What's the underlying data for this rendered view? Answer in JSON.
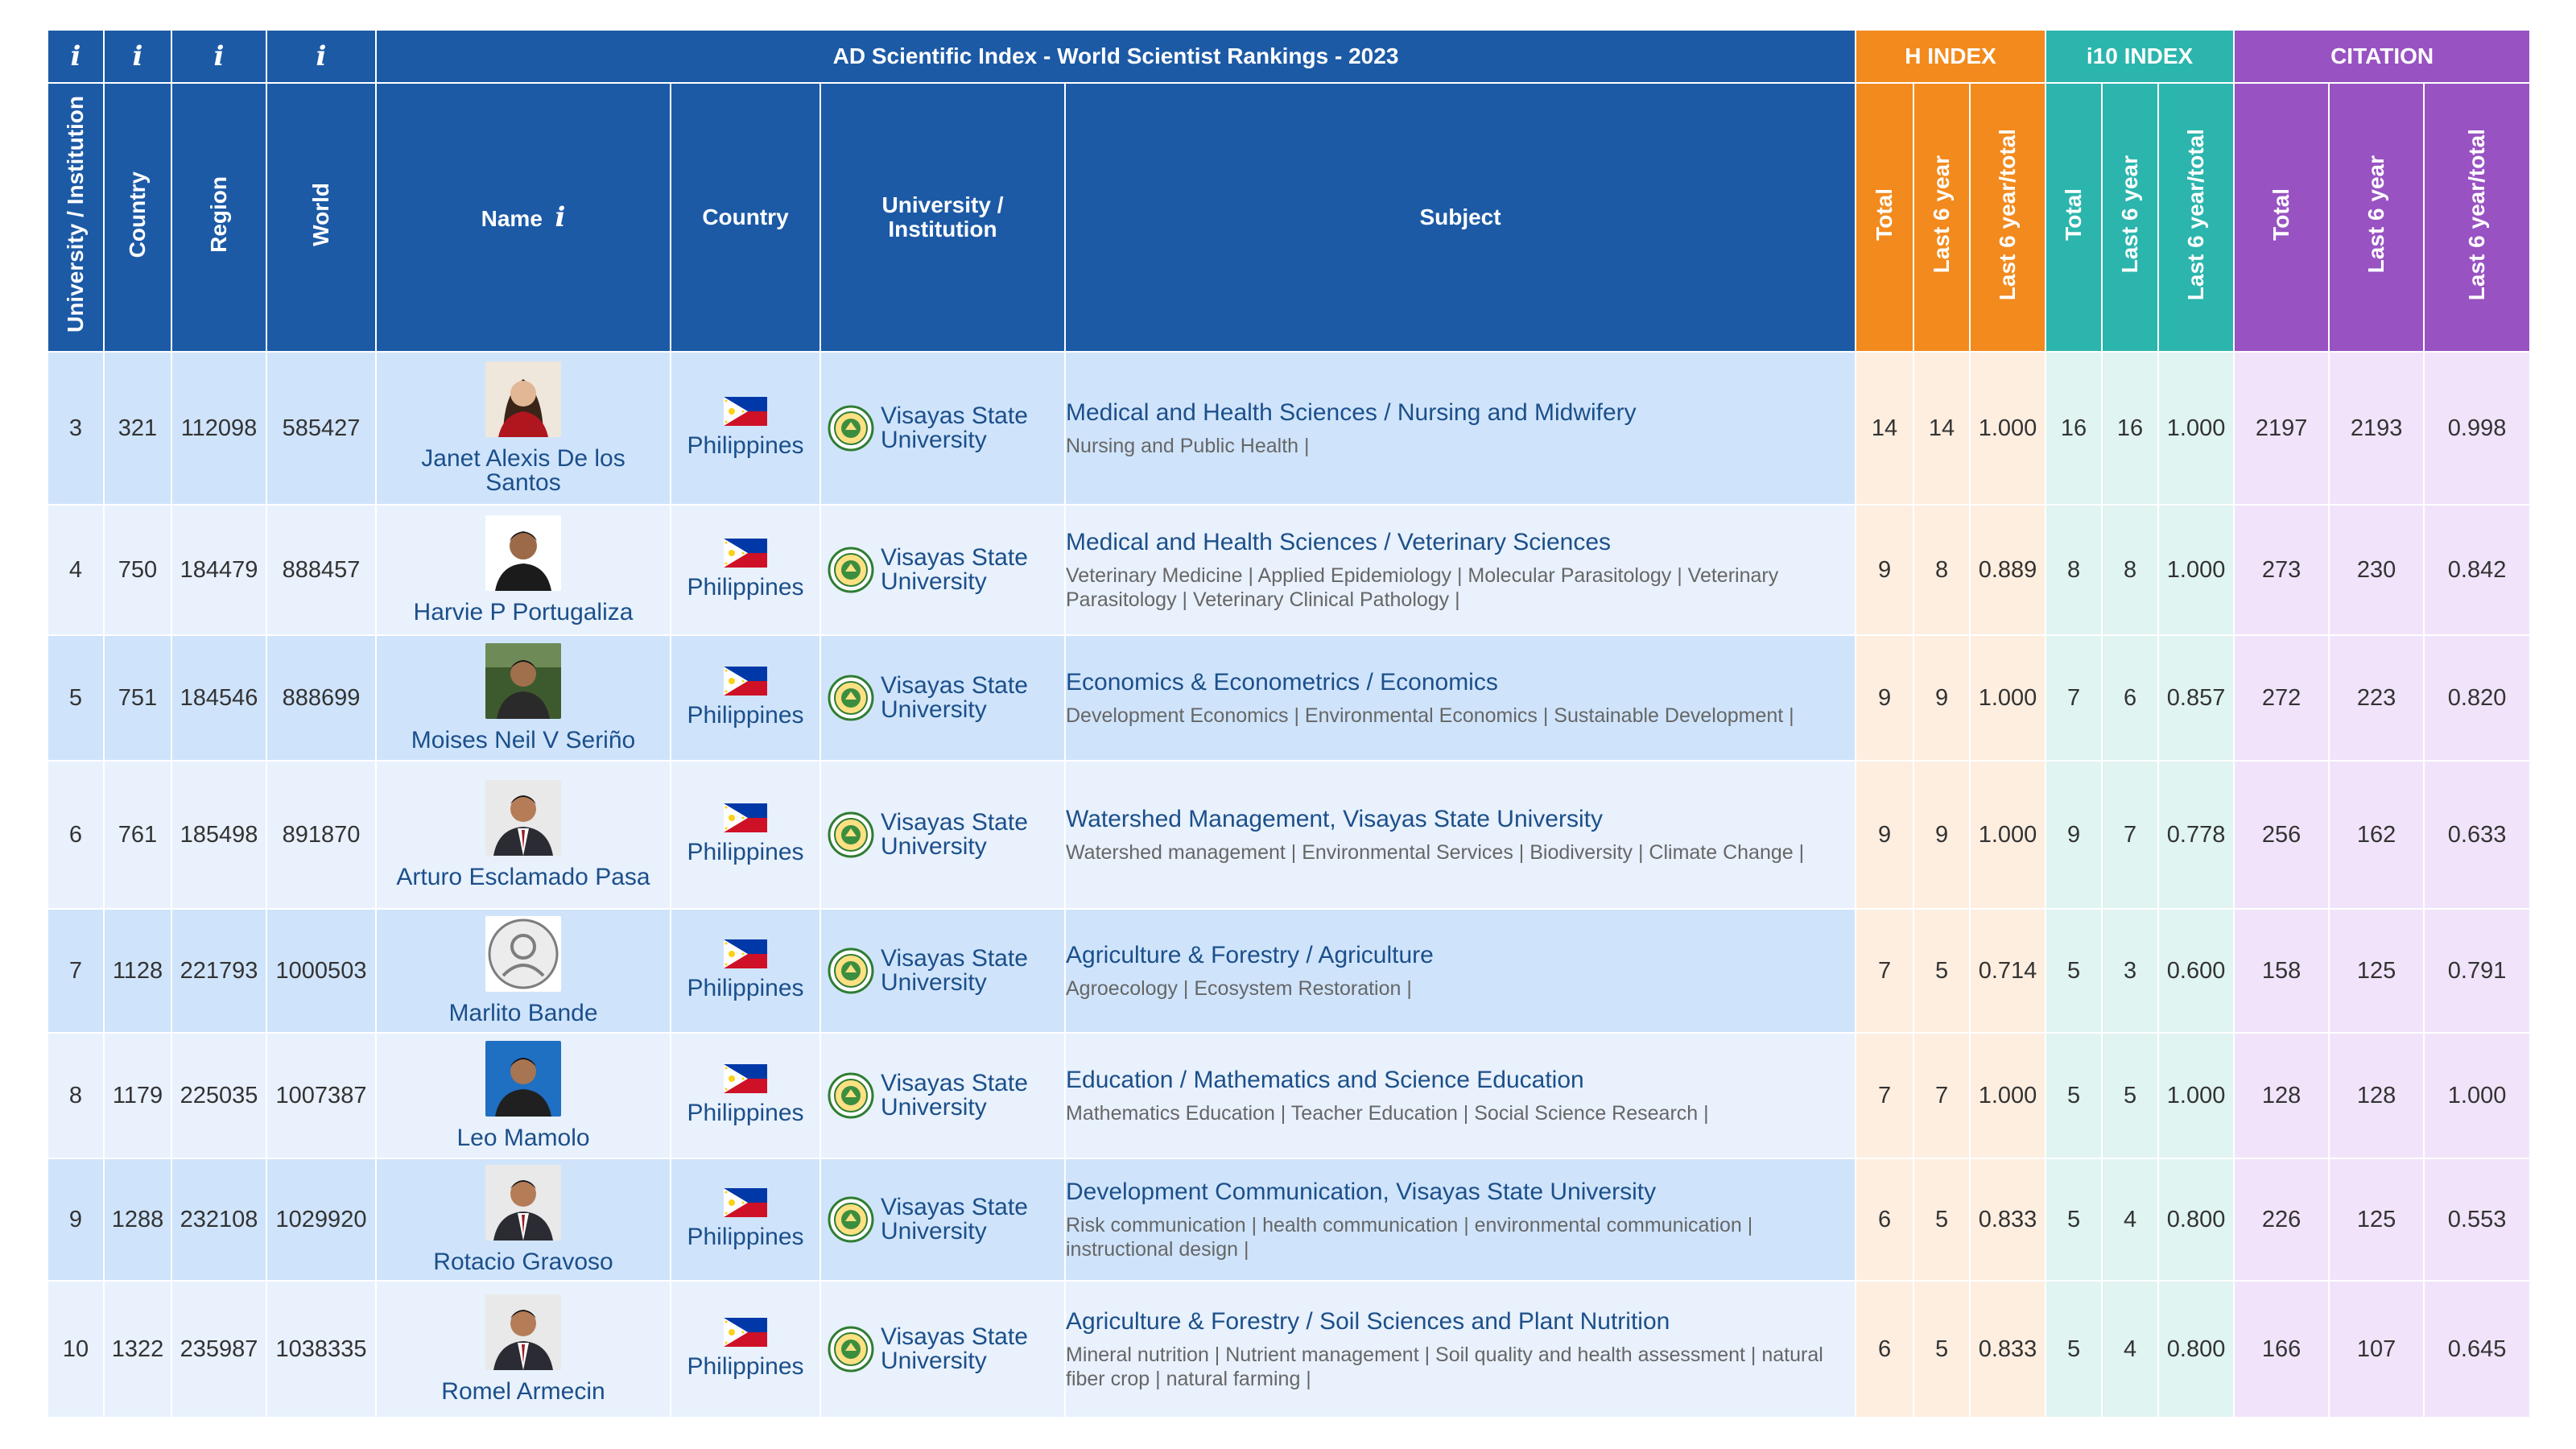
{
  "header": {
    "title": "AD Scientific Index - World Scientist Rankings - 2023",
    "info_symbol": "i",
    "groups": {
      "h_index": "H INDEX",
      "i10_index": "i10 INDEX",
      "citation": "CITATION"
    },
    "columns": {
      "institution_rank": "University / Institution",
      "country_rank": "Country",
      "region_rank": "Region",
      "world_rank": "World",
      "name": "Name",
      "country": "Country",
      "university": "University / Institution",
      "subject": "Subject",
      "total": "Total",
      "last6": "Last 6 year",
      "ratio": "Last 6 year/total"
    }
  },
  "colors": {
    "header_blue": "#1c5aa6",
    "h_index_orange": "#f28a1d",
    "i10_teal": "#2bb5ad",
    "citation_purple": "#9852c2",
    "row_blue_dark": "#cfe4fb",
    "row_blue_light": "#e8f1fc"
  },
  "rows": [
    {
      "inst_rank": "3",
      "country_rank": "321",
      "region_rank": "112098",
      "world_rank": "585427",
      "name": "Janet Alexis De los Santos",
      "avatar": "female-portrait-icon",
      "country": "Philippines",
      "university": "Visayas State University",
      "subject_main": "Medical and Health Sciences / Nursing and Midwifery",
      "subject_sub": "Nursing and Public Health |",
      "h_total": "14",
      "h_last6": "14",
      "h_ratio": "1.000",
      "i10_total": "16",
      "i10_last6": "16",
      "i10_ratio": "1.000",
      "c_total": "2197",
      "c_last6": "2193",
      "c_ratio": "0.998"
    },
    {
      "inst_rank": "4",
      "country_rank": "750",
      "region_rank": "184479",
      "world_rank": "888457",
      "name": "Harvie P Portugaliza",
      "avatar": "male-portrait-icon",
      "country": "Philippines",
      "university": "Visayas State University",
      "subject_main": "Medical and Health Sciences / Veterinary Sciences",
      "subject_sub": "Veterinary Medicine | Applied Epidemiology | Molecular Parasitology | Veterinary Parasitology | Veterinary Clinical Pathology |",
      "h_total": "9",
      "h_last6": "8",
      "h_ratio": "0.889",
      "i10_total": "8",
      "i10_last6": "8",
      "i10_ratio": "1.000",
      "c_total": "273",
      "c_last6": "230",
      "c_ratio": "0.842"
    },
    {
      "inst_rank": "5",
      "country_rank": "751",
      "region_rank": "184546",
      "world_rank": "888699",
      "name": "Moises Neil V Seriño",
      "avatar": "male-portrait-outdoor-icon",
      "country": "Philippines",
      "university": "Visayas State University",
      "subject_main": "Economics & Econometrics / Economics",
      "subject_sub": "Development Economics | Environmental Economics | Sustainable Development |",
      "h_total": "9",
      "h_last6": "9",
      "h_ratio": "1.000",
      "i10_total": "7",
      "i10_last6": "6",
      "i10_ratio": "0.857",
      "c_total": "272",
      "c_last6": "223",
      "c_ratio": "0.820"
    },
    {
      "inst_rank": "6",
      "country_rank": "761",
      "region_rank": "185498",
      "world_rank": "891870",
      "name": "Arturo Esclamado Pasa",
      "avatar": "male-suit-portrait-icon",
      "country": "Philippines",
      "university": "Visayas State University",
      "subject_main": "Watershed Management, Visayas State University",
      "subject_sub": "Watershed management | Environmental Services | Biodiversity | Climate Change |",
      "h_total": "9",
      "h_last6": "9",
      "h_ratio": "1.000",
      "i10_total": "9",
      "i10_last6": "7",
      "i10_ratio": "0.778",
      "c_total": "256",
      "c_last6": "162",
      "c_ratio": "0.633"
    },
    {
      "inst_rank": "7",
      "country_rank": "1128",
      "region_rank": "221793",
      "world_rank": "1000503",
      "name": "Marlito Bande",
      "avatar": "default-user-icon",
      "country": "Philippines",
      "university": "Visayas State University",
      "subject_main": "Agriculture & Forestry / Agriculture",
      "subject_sub": "Agroecology | Ecosystem Restoration |",
      "h_total": "7",
      "h_last6": "5",
      "h_ratio": "0.714",
      "i10_total": "5",
      "i10_last6": "3",
      "i10_ratio": "0.600",
      "c_total": "158",
      "c_last6": "125",
      "c_ratio": "0.791"
    },
    {
      "inst_rank": "8",
      "country_rank": "1179",
      "region_rank": "225035",
      "world_rank": "1007387",
      "name": "Leo Mamolo",
      "avatar": "male-portrait-blue-icon",
      "country": "Philippines",
      "university": "Visayas State University",
      "subject_main": "Education / Mathematics and Science Education",
      "subject_sub": "Mathematics Education | Teacher Education | Social Science Research |",
      "h_total": "7",
      "h_last6": "7",
      "h_ratio": "1.000",
      "i10_total": "5",
      "i10_last6": "5",
      "i10_ratio": "1.000",
      "c_total": "128",
      "c_last6": "128",
      "c_ratio": "1.000"
    },
    {
      "inst_rank": "9",
      "country_rank": "1288",
      "region_rank": "232108",
      "world_rank": "1029920",
      "name": "Rotacio Gravoso",
      "avatar": "male-suit-portrait-icon",
      "country": "Philippines",
      "university": "Visayas State University",
      "subject_main": "Development Communication, Visayas State University",
      "subject_sub": "Risk communication | health communication | environmental communication | instructional design |",
      "h_total": "6",
      "h_last6": "5",
      "h_ratio": "0.833",
      "i10_total": "5",
      "i10_last6": "4",
      "i10_ratio": "0.800",
      "c_total": "226",
      "c_last6": "125",
      "c_ratio": "0.553"
    },
    {
      "inst_rank": "10",
      "country_rank": "1322",
      "region_rank": "235987",
      "world_rank": "1038335",
      "name": "Romel Armecin",
      "avatar": "male-suit-portrait-icon",
      "country": "Philippines",
      "university": "Visayas State University",
      "subject_main": "Agriculture & Forestry / Soil Sciences and Plant Nutrition",
      "subject_sub": "Mineral nutrition | Nutrient management | Soil quality and health assessment | natural fiber crop | natural farming |",
      "h_total": "6",
      "h_last6": "5",
      "h_ratio": "0.833",
      "i10_total": "5",
      "i10_last6": "4",
      "i10_ratio": "0.800",
      "c_total": "166",
      "c_last6": "107",
      "c_ratio": "0.645"
    }
  ]
}
